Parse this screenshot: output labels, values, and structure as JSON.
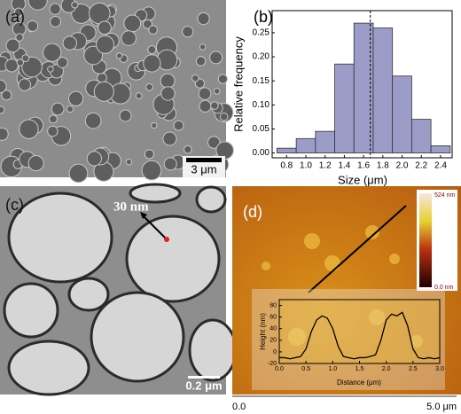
{
  "panel_labels": [
    "(a)",
    "(b)",
    "(c)",
    "(d)"
  ],
  "scale_bar_a": "3 μm",
  "scale_bar_c": "0.2 μm",
  "annotation_c": "30 nm",
  "colorbar_d": {
    "max": "524 nm",
    "min": "0.0 nm"
  },
  "scan_axis_d": {
    "start": "0.0",
    "end": "5.0 μm"
  },
  "chart_data": [
    {
      "type": "histogram",
      "xlabel": "Size (μm)",
      "ylabel": "Relative frequency",
      "color": "#9c9cc8",
      "bins": [
        0.7,
        0.9,
        1.1,
        1.3,
        1.5,
        1.7,
        1.9,
        2.1,
        2.3,
        2.5
      ],
      "values": [
        0.01,
        0.03,
        0.045,
        0.185,
        0.27,
        0.26,
        0.16,
        0.07,
        0.015
      ],
      "vline": 1.67,
      "xlim": [
        0.65,
        2.52
      ],
      "ylim": [
        -0.01,
        0.296
      ],
      "xticks": [
        0.8,
        {
          "value": 1.0,
          "label": "1.0"
        },
        1.2,
        1.4,
        1.6,
        1.8,
        {
          "value": 2.0,
          "label": "2.0"
        },
        2.2,
        2.4
      ],
      "yticks": [
        {
          "value": 0,
          "label": "0.00"
        },
        {
          "value": 0.05,
          "label": "0.05"
        },
        {
          "value": 0.1,
          "label": "0.10"
        },
        {
          "value": 0.15,
          "label": "0.15"
        },
        {
          "value": 0.2,
          "label": "0.20"
        },
        {
          "value": 0.25,
          "label": "0.25"
        }
      ]
    },
    {
      "type": "line",
      "xlabel": "Distance (μm)",
      "ylabel": "Height (nm)",
      "color": "#000000",
      "x": [
        0,
        0.1,
        0.2,
        0.3,
        0.4,
        0.5,
        0.6,
        0.7,
        0.8,
        0.9,
        1.0,
        1.1,
        1.2,
        1.3,
        1.4,
        1.5,
        1.6,
        1.7,
        1.8,
        1.9,
        2.0,
        2.1,
        2.2,
        2.3,
        2.4,
        2.5,
        2.6,
        2.7,
        2.8,
        2.9,
        3.0
      ],
      "values": [
        -10,
        -10,
        -12,
        -10,
        -8,
        5,
        35,
        55,
        62,
        58,
        40,
        10,
        -8,
        -10,
        -12,
        -10,
        -10,
        -8,
        -5,
        20,
        55,
        65,
        62,
        68,
        45,
        5,
        -10,
        -12,
        -10,
        -12,
        -10
      ],
      "xlim": [
        0,
        3
      ],
      "ylim": [
        -20,
        90
      ],
      "xticks": [
        {
          "value": 0,
          "label": "0.0"
        },
        0.5,
        {
          "value": 1,
          "label": "1.0"
        },
        1.5,
        {
          "value": 2,
          "label": "2.0"
        },
        2.5,
        {
          "value": 3,
          "label": "3.0"
        }
      ],
      "yticks": [
        -20,
        0,
        20,
        40,
        60,
        80
      ]
    }
  ]
}
